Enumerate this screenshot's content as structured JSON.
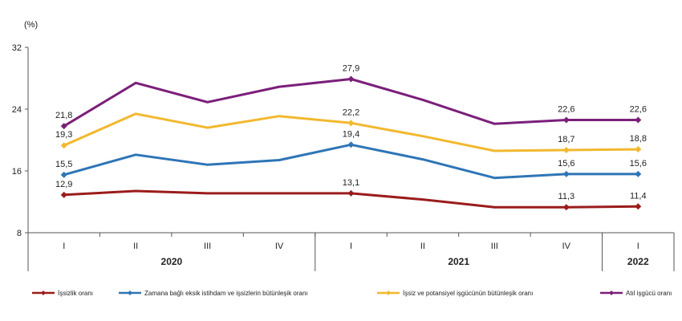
{
  "chart_data": {
    "type": "line",
    "ylabel": "(%)",
    "ylim": [
      8,
      32
    ],
    "yticks": [
      8,
      16,
      24,
      32
    ],
    "categories": [
      "I",
      "II",
      "III",
      "IV",
      "I",
      "II",
      "III",
      "IV",
      "I"
    ],
    "years": [
      {
        "label": "2020",
        "start": 0,
        "end": 3
      },
      {
        "label": "2021",
        "start": 4,
        "end": 7
      },
      {
        "label": "2022",
        "start": 8,
        "end": 8
      }
    ],
    "series": [
      {
        "name": "İşsizlik oranı",
        "color": "#9b1c1c",
        "values": [
          12.9,
          13.4,
          13.1,
          13.1,
          13.1,
          12.3,
          11.3,
          11.3,
          11.4
        ],
        "labels": [
          "12,9",
          null,
          null,
          null,
          "13,1",
          null,
          null,
          "11,3",
          "11,4"
        ]
      },
      {
        "name": "Zamana bağlı eksik istihdam ve işsizlerin bütünleşik oranı",
        "color": "#2e75b6",
        "values": [
          15.5,
          18.1,
          16.8,
          17.4,
          19.4,
          17.5,
          15.1,
          15.6,
          15.6
        ],
        "labels": [
          "15,5",
          null,
          null,
          null,
          "19,4",
          null,
          null,
          "15,6",
          "15,6"
        ]
      },
      {
        "name": "İşsiz ve potansiyel işgücünün bütünleşik oranı",
        "color": "#f2b82e",
        "values": [
          19.3,
          23.4,
          21.6,
          23.1,
          22.2,
          20.5,
          18.6,
          18.7,
          18.8
        ],
        "labels": [
          "19,3",
          null,
          null,
          null,
          "22,2",
          null,
          null,
          "18,7",
          "18,8"
        ]
      },
      {
        "name": "Atıl işgücü oranı",
        "color": "#7b1f7a",
        "values": [
          21.8,
          27.4,
          24.9,
          26.9,
          27.9,
          25.2,
          22.1,
          22.6,
          22.6
        ],
        "labels": [
          "21,8",
          null,
          null,
          null,
          "27,9",
          null,
          null,
          "22,6",
          "22,6"
        ]
      }
    ]
  }
}
